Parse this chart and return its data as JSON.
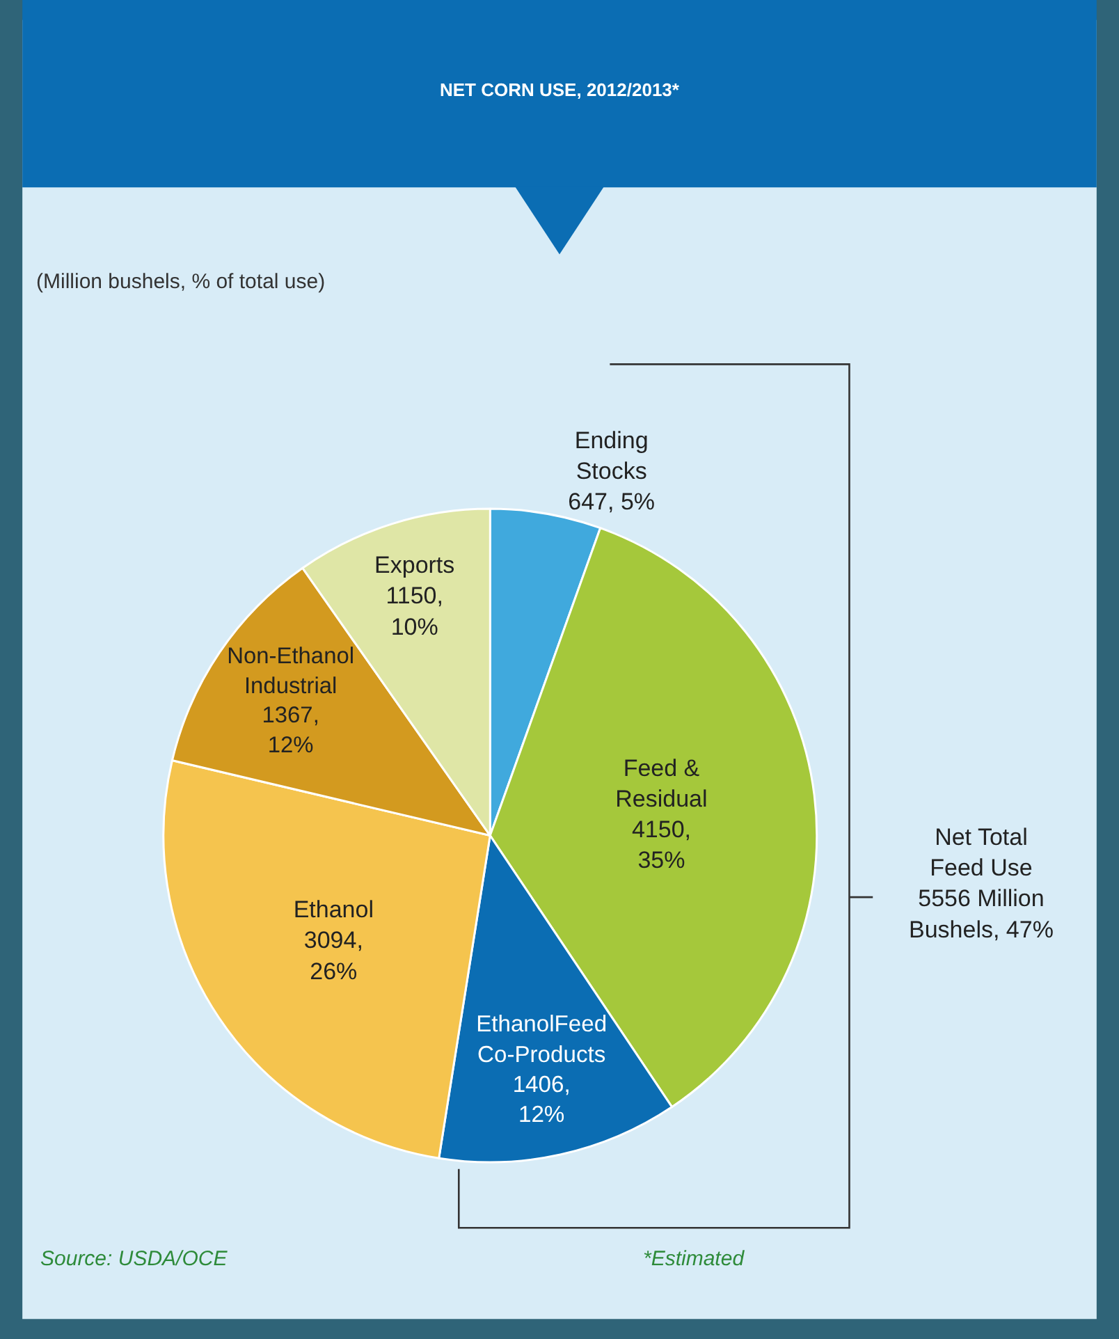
{
  "chart_data": {
    "type": "pie",
    "title": "NET CORN USE, 2012/2013*",
    "categories": [
      "Ending Stocks",
      "Feed & Residual",
      "EthanolFeed Co-Products",
      "Ethanol",
      "Non-Ethanol Industrial",
      "Exports"
    ],
    "values": [
      647,
      4150,
      1406,
      3094,
      1367,
      1150
    ],
    "colors": [
      "#40a9dd",
      "#a5c83b",
      "#0b6db3",
      "#f5c44e",
      "#d39a1f",
      "#dfe6a6"
    ],
    "value_labels": [
      "647, 5%",
      "4150, 35%",
      "1406, 12%",
      "3094, 26%",
      "1367, 12%",
      "1150, 10%"
    ],
    "annotations": [
      "(Million bushels, % of total use)",
      "Net Total Feed Use 5556 Million Bushels, 47%",
      "Source: USDA/OCE",
      "*Estimated"
    ]
  }
}
